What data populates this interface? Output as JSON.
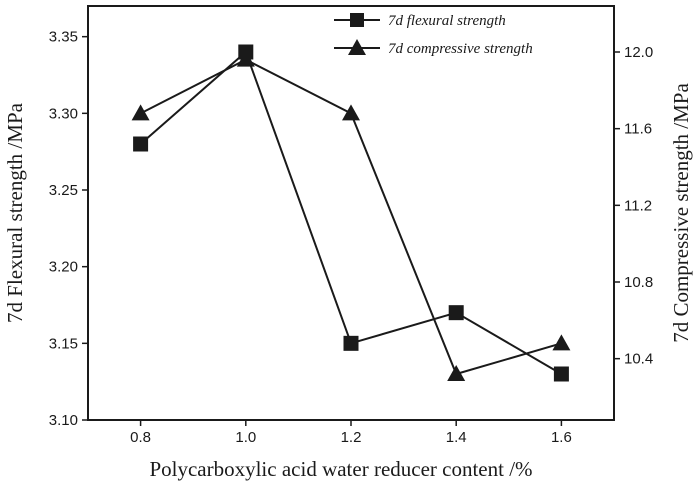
{
  "chart_data": {
    "type": "line",
    "x": [
      0.8,
      1.0,
      1.2,
      1.4,
      1.6
    ],
    "xlim": [
      0.7,
      1.7
    ],
    "xticks": [
      "0.8",
      "1.0",
      "1.2",
      "1.4",
      "1.6"
    ],
    "xlabel": "Polycarboxylic acid water reducer content /%",
    "ylabel_left": "7d Flexural strength /MPa",
    "ylabel_right": "7d Compressive strength /MPa",
    "ylim_left": [
      3.1,
      3.37
    ],
    "ylim_right": [
      10.08,
      12.24
    ],
    "yticks_left": [
      "3.10",
      "3.15",
      "3.20",
      "3.25",
      "3.30",
      "3.35"
    ],
    "yticks_right": [
      "10.4",
      "10.8",
      "11.2",
      "11.6",
      "12.0"
    ],
    "grid": false,
    "legend_position": "top-right",
    "series": [
      {
        "name": "7d flexural strength",
        "axis": "left",
        "marker": "square",
        "values": [
          3.28,
          3.34,
          3.15,
          3.17,
          3.13
        ]
      },
      {
        "name": "7d compressive strength",
        "axis": "right",
        "marker": "triangle",
        "values": [
          11.68,
          11.96,
          11.68,
          10.32,
          10.48
        ]
      }
    ],
    "colors": {
      "line": "#1a1a1a",
      "background": "#ffffff"
    }
  }
}
